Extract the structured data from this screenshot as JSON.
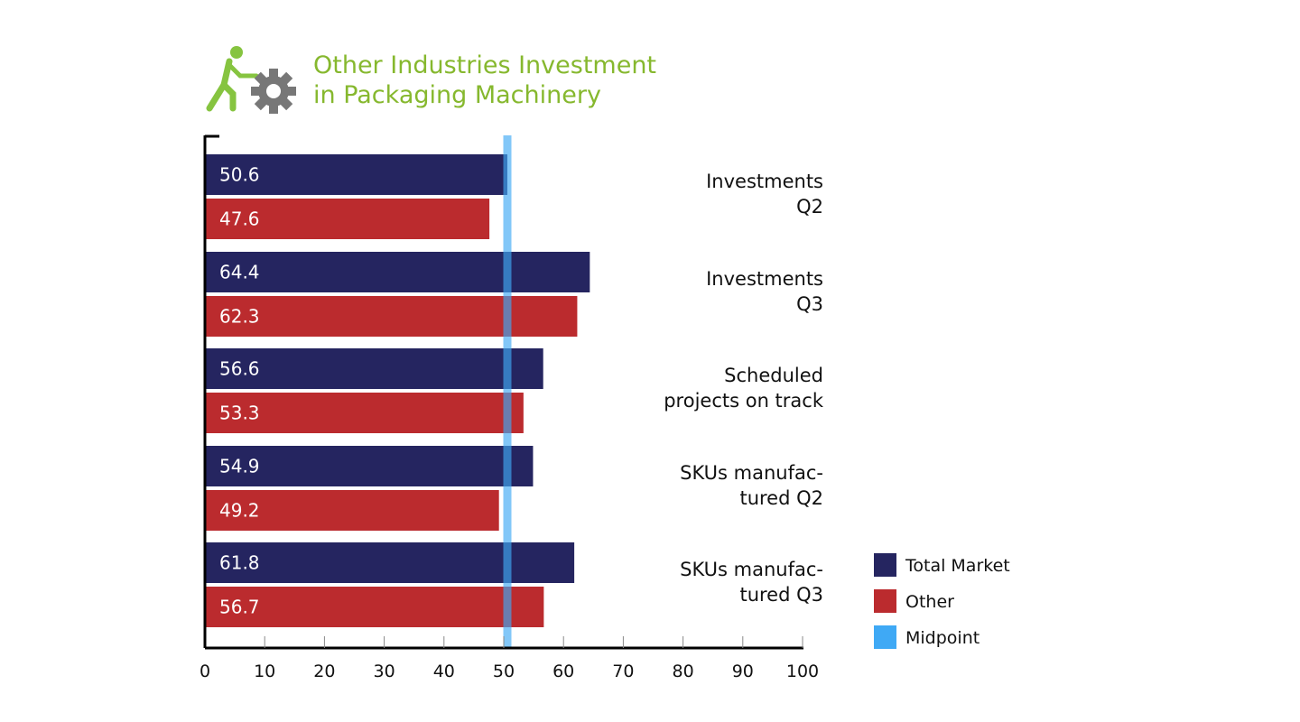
{
  "chart_data": {
    "type": "bar",
    "orientation": "horizontal",
    "title": [
      "Other Industries Investment",
      "in Packaging Machinery"
    ],
    "categories": [
      [
        "Investments",
        "Q2"
      ],
      [
        "Investments",
        "Q3"
      ],
      [
        "Scheduled",
        "projects on track"
      ],
      [
        "SKUs manufac-",
        "tured Q2"
      ],
      [
        "SKUs manufac-",
        "tured Q3"
      ]
    ],
    "series": [
      {
        "name": "Total Market",
        "color": "#252560",
        "values": [
          50.6,
          64.4,
          56.6,
          54.9,
          61.8
        ]
      },
      {
        "name": "Other",
        "color": "#bb2b2e",
        "values": [
          47.6,
          62.3,
          53.3,
          49.2,
          56.7
        ]
      }
    ],
    "midpoint": {
      "name": "Midpoint",
      "value": 50,
      "color": "#3fa9f5"
    },
    "xlim": [
      0,
      100
    ],
    "xticks": [
      0,
      10,
      20,
      30,
      40,
      50,
      60,
      70,
      80,
      90,
      100
    ],
    "legend": "bottom-right",
    "grid": false,
    "logo": {
      "icon": "person-pushing-gear-icon",
      "person_color": "#86c440",
      "gear_color": "#777777"
    }
  }
}
